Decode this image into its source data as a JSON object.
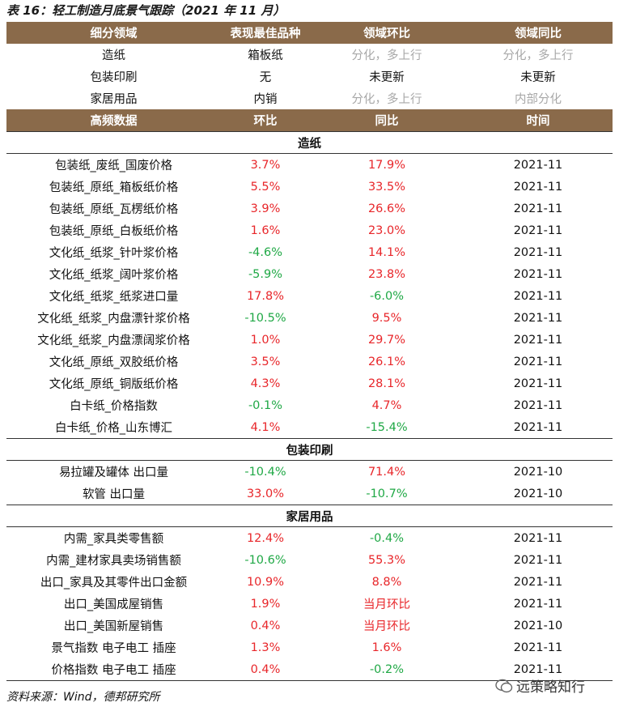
{
  "title": "表 16：轻工制造月底景气跟踪（2021 年 11 月）",
  "summary": {
    "header": [
      "细分领域",
      "表现最佳品种",
      "领域环比",
      "领域同比"
    ],
    "rows": [
      [
        "造纸",
        "箱板纸",
        "分化，多上行",
        "分化，多上行"
      ],
      [
        "包装印刷",
        "无",
        "未更新",
        "未更新"
      ],
      [
        "家居用品",
        "内销",
        "分化，多上行",
        "内部分化"
      ]
    ]
  },
  "detail": {
    "header": [
      "高频数据",
      "环比",
      "同比",
      "时间"
    ],
    "sections": [
      {
        "name": "造纸",
        "rows": [
          [
            "包装纸_废纸_国废价格",
            "3.7%",
            "17.9%",
            "2021-11"
          ],
          [
            "包装纸_原纸_箱板纸价格",
            "5.5%",
            "33.5%",
            "2021-11"
          ],
          [
            "包装纸_原纸_瓦楞纸价格",
            "3.9%",
            "26.6%",
            "2021-11"
          ],
          [
            "包装纸_原纸_白板纸价格",
            "1.6%",
            "23.0%",
            "2021-11"
          ],
          [
            "文化纸_纸浆_针叶浆价格",
            "-4.6%",
            "14.1%",
            "2021-11"
          ],
          [
            "文化纸_纸浆_阔叶浆价格",
            "-5.9%",
            "23.8%",
            "2021-11"
          ],
          [
            "文化纸_纸浆_纸浆进口量",
            "17.8%",
            "-6.0%",
            "2021-11"
          ],
          [
            "文化纸_纸浆_内盘漂针浆价格",
            "-10.5%",
            "9.5%",
            "2021-11"
          ],
          [
            "文化纸_纸浆_内盘漂阔浆价格",
            "1.0%",
            "29.7%",
            "2021-11"
          ],
          [
            "文化纸_原纸_双胶纸价格",
            "3.5%",
            "26.1%",
            "2021-11"
          ],
          [
            "文化纸_原纸_铜版纸价格",
            "4.3%",
            "28.1%",
            "2021-11"
          ],
          [
            "白卡纸_价格指数",
            "-0.1%",
            "4.7%",
            "2021-11"
          ],
          [
            "白卡纸_价格_山东博汇",
            "4.1%",
            "-15.4%",
            "2021-11"
          ]
        ]
      },
      {
        "name": "包装印刷",
        "rows": [
          [
            "易拉罐及罐体 出口量",
            "-10.4%",
            "71.4%",
            "2021-10"
          ],
          [
            "软管 出口量",
            "33.0%",
            "-10.7%",
            "2021-10"
          ]
        ]
      },
      {
        "name": "家居用品",
        "rows": [
          [
            "内需_家具类零售额",
            "12.4%",
            "-0.4%",
            "2021-11"
          ],
          [
            "内需_建材家具卖场销售额",
            "-10.6%",
            "55.3%",
            "2021-11"
          ],
          [
            "出口_家具及其零件出口金额",
            "10.9%",
            "8.8%",
            "2021-11"
          ],
          [
            "出口_美国成屋销售",
            "1.9%",
            "当月环比",
            "2021-11"
          ],
          [
            "出口_美国新屋销售",
            "0.4%",
            "当月环比",
            "2021-10"
          ],
          [
            "景气指数 电子电工 插座",
            "1.3%",
            "1.6%",
            "2021-11"
          ],
          [
            "价格指数 电子电工 插座",
            "0.4%",
            "-0.2%",
            "2021-11"
          ]
        ]
      }
    ]
  },
  "source": "资料来源：Wind，德邦研究所",
  "watermark": "远策略知行"
}
